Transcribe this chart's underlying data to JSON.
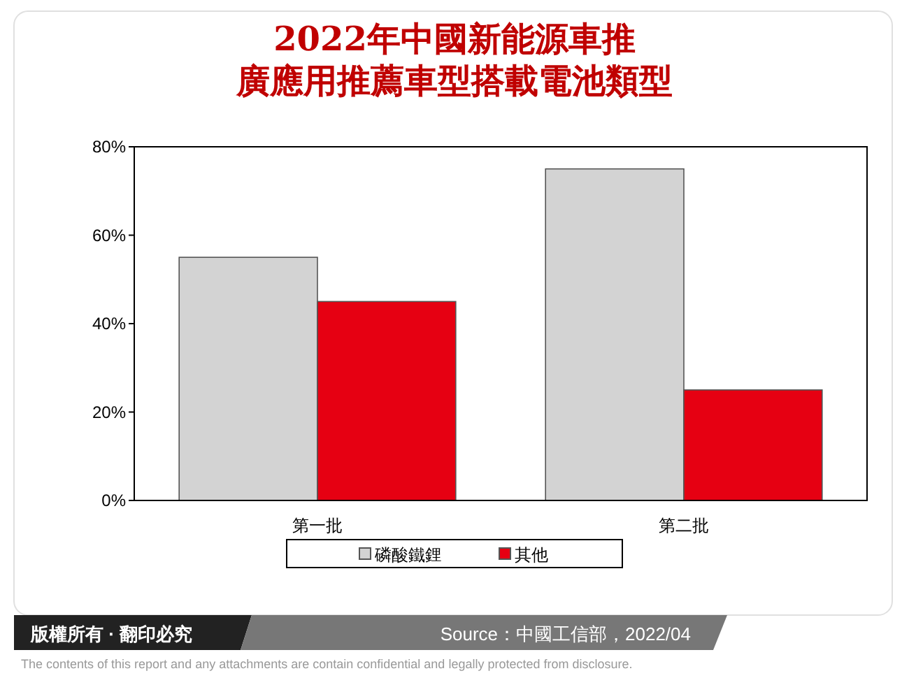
{
  "chart_data": {
    "type": "bar",
    "title": "2022年中國新能源車推廣應用推薦車型搭載電池類型",
    "categories": [
      "第一批",
      "第二批"
    ],
    "series": [
      {
        "name": "磷酸鐵鋰",
        "color": "#d3d3d3",
        "values": [
          55,
          75
        ]
      },
      {
        "name": "其他",
        "color": "#e60012",
        "values": [
          45,
          25
        ]
      }
    ],
    "ylim": [
      0,
      80
    ],
    "yticks": [
      {
        "value": 0,
        "label": "0%"
      },
      {
        "value": 20,
        "label": "20%"
      },
      {
        "value": 40,
        "label": "40%"
      },
      {
        "value": 60,
        "label": "60%"
      },
      {
        "value": 80,
        "label": "80%"
      }
    ],
    "grid": false,
    "legend": "bottom",
    "annotations": [
      "版權所有 · 翻印必究",
      "Source：中國工信部，2022/04",
      "The contents of this report and any attachments are contain confidential and legally protected from disclosure."
    ]
  }
}
